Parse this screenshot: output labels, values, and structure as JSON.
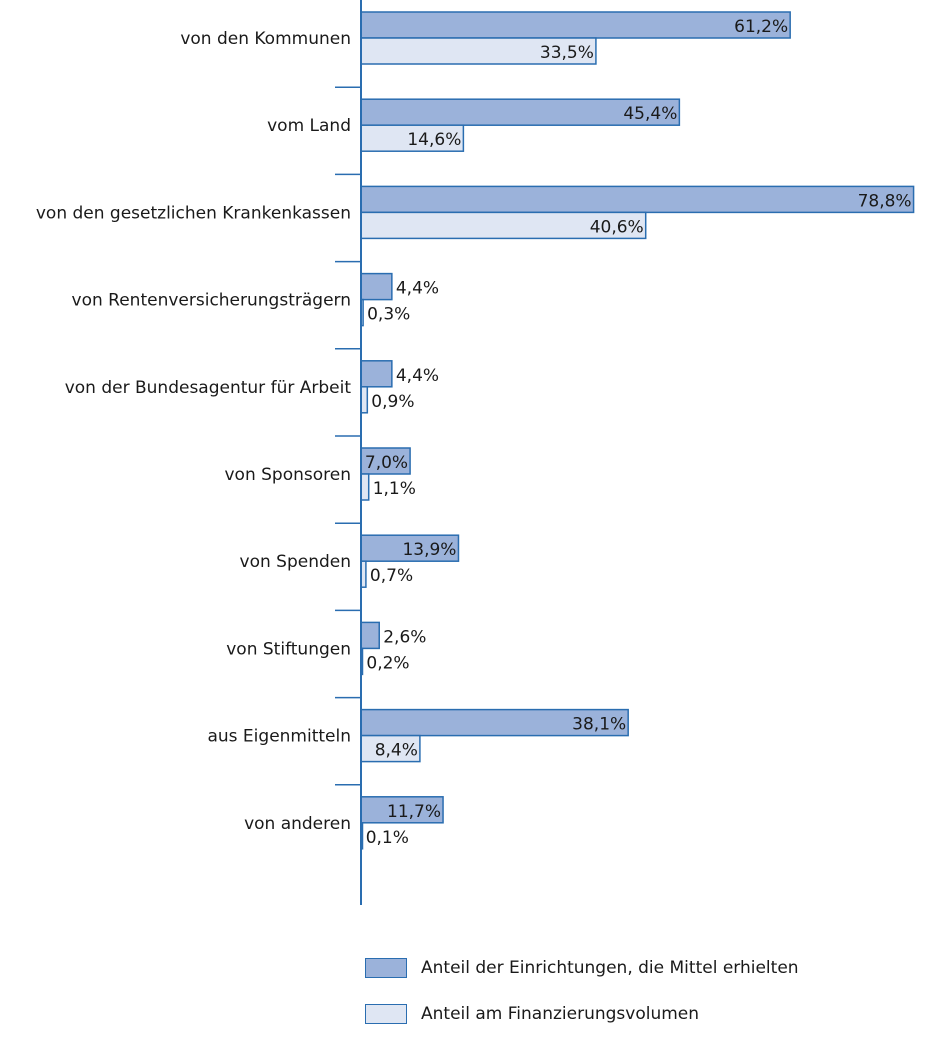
{
  "chart_data": {
    "type": "bar",
    "orientation": "horizontal",
    "categories": [
      "von den Kommunen",
      "vom Land",
      "von den gesetzlichen Krankenkassen",
      "von Rentenversicherungsträgern",
      "von der Bundesagentur für Arbeit",
      "von Sponsoren",
      "von Spenden",
      "von Stiftungen",
      "aus Eigenmitteln",
      "von anderen"
    ],
    "series": [
      {
        "name": "Anteil der Einrichtungen, die Mittel erhielten",
        "values": [
          61.2,
          45.4,
          78.8,
          4.4,
          4.4,
          7.0,
          13.9,
          2.6,
          38.1,
          11.7
        ],
        "labels": [
          "61,2%",
          "45,4%",
          "78,8%",
          "4,4%",
          "4,4%",
          "7,0%",
          "13,9%",
          "2,6%",
          "38,1%",
          "11,7%"
        ],
        "color": "#9bb2da"
      },
      {
        "name": "Anteil am Finanzierungsvolumen",
        "values": [
          33.5,
          14.6,
          40.6,
          0.3,
          0.9,
          1.1,
          0.7,
          0.2,
          8.4,
          0.1
        ],
        "labels": [
          "33,5%",
          "14,6%",
          "40,6%",
          "0,3%",
          "0,9%",
          "1,1%",
          "0,7%",
          "0,2%",
          "8,4%",
          "0,1%"
        ],
        "color": "#dfe6f3"
      }
    ],
    "xlim": [
      0,
      80
    ],
    "legend_position": "bottom",
    "grid": false,
    "axis_color": "#2a6db0"
  }
}
